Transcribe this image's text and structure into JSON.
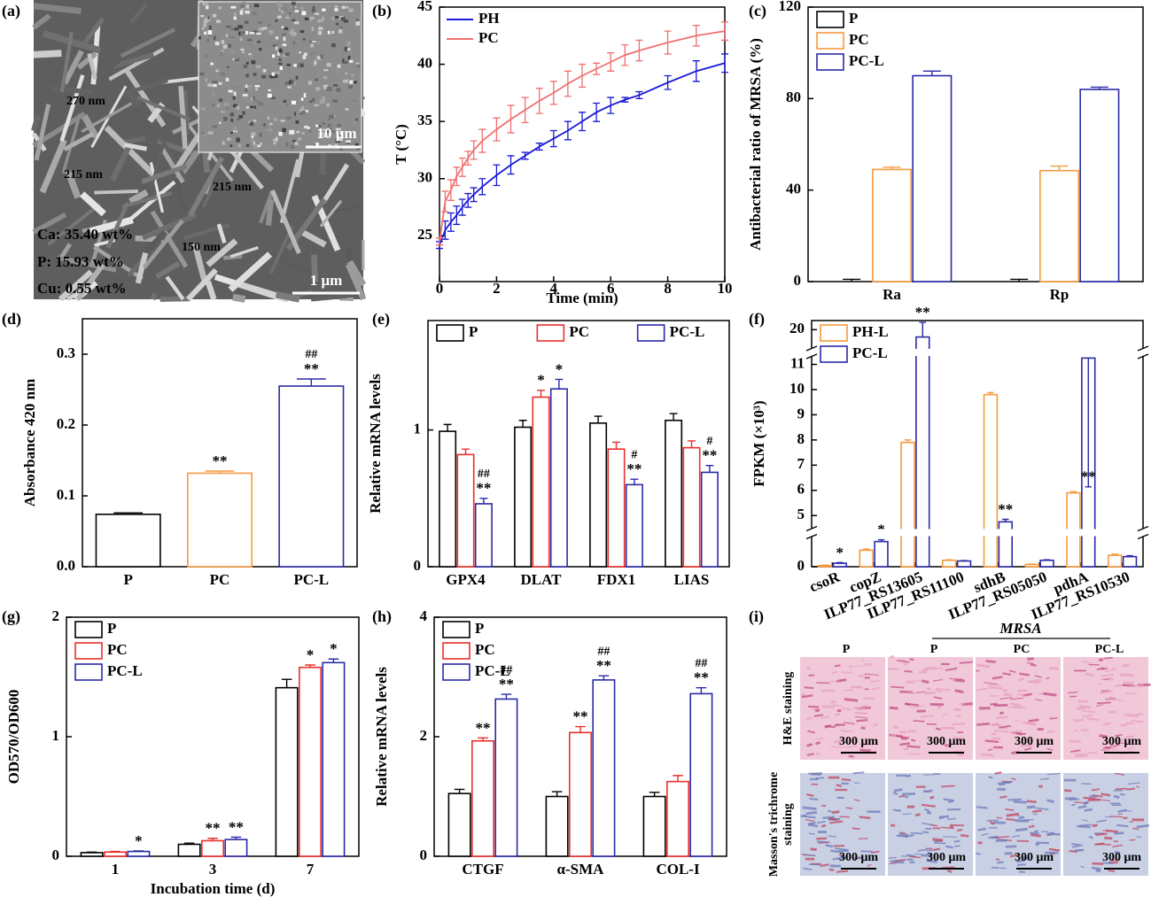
{
  "chart_data": [
    {
      "type": "image",
      "label": "(a)",
      "annotations": [
        {
          "text": "270 nm",
          "color": "#e01010"
        },
        {
          "text": "215 nm",
          "color": "#e01010"
        },
        {
          "text": "215 nm",
          "color": "#e01010"
        },
        {
          "text": "150 nm",
          "color": "#e01010"
        },
        {
          "text": "Ca: 35.40 wt%",
          "color": "#22dd22"
        },
        {
          "text": "P: 15.93 wt%",
          "color": "#22dd22"
        },
        {
          "text": "Cu: 0.55 wt%",
          "color": "#e01010"
        }
      ],
      "scale_bar": "1 μm",
      "inset_scale_bar": "10 μm"
    },
    {
      "type": "line",
      "label": "(b)",
      "xlabel": "Time (min)",
      "ylabel": "T (°C)",
      "xlim": [
        0,
        10
      ],
      "ylim": [
        21,
        45
      ],
      "xticks": [
        0,
        2,
        4,
        6,
        8,
        10
      ],
      "yticks": [
        25,
        30,
        35,
        40,
        45
      ],
      "legend": "upper left",
      "x": [
        0,
        0.2,
        0.4,
        0.6,
        0.8,
        1,
        1.2,
        1.5,
        2,
        2.5,
        3,
        3.5,
        4,
        4.5,
        5,
        5.5,
        6,
        6.5,
        7,
        8,
        9,
        10
      ],
      "series": [
        {
          "name": "PH",
          "color": "#1a1ad6",
          "values": [
            24.2,
            25.5,
            26.2,
            26.8,
            27.5,
            28.1,
            28.6,
            29.3,
            30.3,
            31.2,
            32.0,
            32.8,
            33.5,
            34.2,
            35.0,
            35.8,
            36.4,
            36.9,
            37.3,
            38.4,
            39.4,
            40.1
          ],
          "errors": [
            0.3,
            0.8,
            0.8,
            0.8,
            0.7,
            0.6,
            0.6,
            0.7,
            0.9,
            0.8,
            0.3,
            0.3,
            0.7,
            0.8,
            0.8,
            0.8,
            0.7,
            0.2,
            0.3,
            0.6,
            0.9,
            0.8
          ]
        },
        {
          "name": "PC",
          "color": "#f07070",
          "values": [
            24.5,
            28.0,
            29.0,
            30.2,
            31.0,
            31.8,
            32.5,
            33.3,
            34.3,
            35.2,
            36.0,
            36.8,
            37.5,
            38.3,
            39.0,
            39.6,
            40.2,
            40.8,
            41.2,
            41.9,
            42.5,
            42.9
          ],
          "errors": [
            0.3,
            0.9,
            0.9,
            0.8,
            0.8,
            0.6,
            0.8,
            1.0,
            1.0,
            1.2,
            1.1,
            1.1,
            1.0,
            1.1,
            1.0,
            0.5,
            0.8,
            0.9,
            0.9,
            1.0,
            0.9,
            0.8
          ]
        }
      ]
    },
    {
      "type": "bar",
      "label": "(c)",
      "ylabel": "Antibacterial ratio of MRSA (%)",
      "ylim": [
        0,
        120
      ],
      "yticks": [
        0,
        40,
        80,
        120
      ],
      "legend": "upper left",
      "categories": [
        "Ra",
        "Rp"
      ],
      "series": [
        {
          "name": "P",
          "color": "#000000",
          "values": [
            0,
            0
          ],
          "errors": [
            1,
            1
          ]
        },
        {
          "name": "PC",
          "color": "#f59a3c",
          "values": [
            49,
            48.5
          ],
          "errors": [
            1,
            2
          ]
        },
        {
          "name": "PC-L",
          "color": "#2a2aa8",
          "values": [
            90,
            84
          ],
          "errors": [
            2,
            1
          ]
        }
      ]
    },
    {
      "type": "bar",
      "label": "(d)",
      "ylabel": "Absorbance 420 nm",
      "ylim": [
        0,
        0.35
      ],
      "yticks": [
        {
          "value": 0,
          "label": "0.0"
        },
        0.1,
        0.2,
        0.3
      ],
      "categories": [
        "P",
        "PC",
        "PC-L"
      ],
      "values": [
        0.074,
        0.132,
        0.255
      ],
      "errors": [
        0.002,
        0.003,
        0.01
      ],
      "colors": [
        "#000000",
        "#f59a3c",
        "#2a2aa8"
      ],
      "stars": [
        null,
        "**",
        "**"
      ],
      "hashes": [
        null,
        null,
        "##"
      ]
    },
    {
      "type": "bar",
      "label": "(e)",
      "ylabel": "Relative mRNA levels",
      "ylim": [
        0,
        1.8
      ],
      "yticks": [
        0,
        1
      ],
      "legend": "upper center",
      "categories": [
        "GPX4",
        "DLAT",
        "FDX1",
        "LIAS"
      ],
      "series": [
        {
          "name": "P",
          "color": "#000000",
          "values": [
            0.99,
            1.02,
            1.05,
            1.07
          ],
          "errors": [
            0.05,
            0.05,
            0.05,
            0.05
          ]
        },
        {
          "name": "PC",
          "color": "#e8302c",
          "values": [
            0.82,
            1.24,
            0.86,
            0.87
          ],
          "errors": [
            0.04,
            0.05,
            0.05,
            0.05
          ],
          "stars": [
            null,
            "*",
            null,
            null
          ]
        },
        {
          "name": "PC-L",
          "color": "#2a2aa8",
          "values": [
            0.46,
            1.3,
            0.6,
            0.69
          ],
          "errors": [
            0.04,
            0.07,
            0.04,
            0.05
          ],
          "stars": [
            "**",
            "*",
            "**",
            "**"
          ],
          "hashes": [
            "##",
            null,
            "#",
            "#"
          ]
        }
      ]
    },
    {
      "type": "bar",
      "label": "(f)",
      "ylabel": "FPKM (×10³)",
      "ysegments": [
        [
          0,
          1.3
        ],
        [
          4.5,
          11.3
        ],
        [
          19,
          20.5
        ]
      ],
      "yticks": [
        0,
        5,
        6,
        7,
        8,
        9,
        10,
        11,
        20
      ],
      "legend": "upper left",
      "categories": [
        "csoR",
        "copZ",
        "ILP77_RS13605",
        "ILP77_RS11100",
        "sdhB",
        "ILP77_RS05050",
        "pdhA",
        "ILP77_RS10530"
      ],
      "series": [
        {
          "name": "PH-L",
          "color": "#f59a3c",
          "values": [
            0.05,
            0.72,
            7.9,
            0.28,
            9.8,
            0.1,
            5.9,
            0.5
          ],
          "errors": [
            0.02,
            0.05,
            0.1,
            0.02,
            0.08,
            0.02,
            0.05,
            0.05
          ]
        },
        {
          "name": "PC-L",
          "color": "#2a2aa8",
          "values": [
            0.15,
            1.1,
            19.6,
            0.25,
            4.75,
            0.28,
            11.25,
            0.44
          ],
          "errors": [
            0.03,
            0.08,
            0.8,
            0.02,
            0.1,
            0.02,
            0.15,
            0.04
          ],
          "stars": [
            "*",
            "*",
            "**",
            null,
            "**",
            null,
            "**",
            null
          ]
        }
      ]
    },
    {
      "type": "bar",
      "label": "(g)",
      "ylabel": "OD570/OD600",
      "xlabel": "Incubation time (d)",
      "ylim": [
        0,
        2
      ],
      "yticks": [
        0,
        1,
        2
      ],
      "legend": "upper left",
      "categories": [
        "1",
        "3",
        "7"
      ],
      "series": [
        {
          "name": "P",
          "color": "#000000",
          "values": [
            0.03,
            0.1,
            1.41
          ],
          "errors": [
            0.005,
            0.01,
            0.07
          ]
        },
        {
          "name": "PC",
          "color": "#e8302c",
          "values": [
            0.035,
            0.13,
            1.58
          ],
          "errors": [
            0.005,
            0.02,
            0.02
          ],
          "stars": [
            null,
            "**",
            "*"
          ]
        },
        {
          "name": "PC-L",
          "color": "#2a2aa8",
          "values": [
            0.04,
            0.14,
            1.62
          ],
          "errors": [
            0.005,
            0.02,
            0.03
          ],
          "stars": [
            "*",
            "**",
            "*"
          ]
        }
      ]
    },
    {
      "type": "bar",
      "label": "(h)",
      "ylabel": "Relative mRNA levels",
      "ylim": [
        0,
        4
      ],
      "yticks": [
        0,
        2,
        4
      ],
      "legend": "upper left",
      "categories": [
        "CTGF",
        "α-SMA",
        "COL-I"
      ],
      "series": [
        {
          "name": "P",
          "color": "#000000",
          "values": [
            1.05,
            1.0,
            1.0
          ],
          "errors": [
            0.07,
            0.08,
            0.07
          ]
        },
        {
          "name": "PC",
          "color": "#e8302c",
          "values": [
            1.93,
            2.07,
            1.25
          ],
          "errors": [
            0.05,
            0.1,
            0.1
          ],
          "stars": [
            "**",
            "**",
            null
          ]
        },
        {
          "name": "PC-L",
          "color": "#2a2aa8",
          "values": [
            2.63,
            2.95,
            2.72
          ],
          "errors": [
            0.08,
            0.07,
            0.1
          ],
          "stars": [
            "**",
            "**",
            "**"
          ],
          "hashes": [
            "##",
            "##",
            "##"
          ]
        }
      ]
    },
    {
      "type": "image",
      "label": "(i)",
      "group_label": "MRSA",
      "columns": [
        "P",
        "P",
        "PC",
        "PC-L"
      ],
      "rows": [
        [
          "H&E staining"
        ],
        [
          "Masson's trichrome",
          "staining"
        ]
      ],
      "scale_bar": "300 μm"
    }
  ]
}
